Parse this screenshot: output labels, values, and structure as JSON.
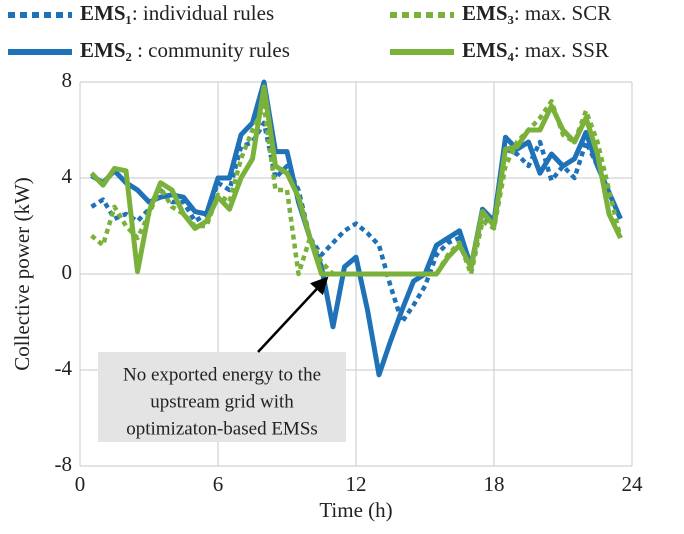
{
  "chart_data": {
    "type": "line",
    "xlabel": "Time (h)",
    "ylabel": "Collective power (kW)",
    "xlim": [
      0,
      24
    ],
    "xticks": [
      0,
      6,
      12,
      18,
      24
    ],
    "ylim": [
      -8,
      8
    ],
    "yticks": [
      -8,
      -4,
      0,
      4,
      8
    ],
    "grid": true,
    "legend": "top",
    "annotation": [
      "No exported energy to the",
      "upstream grid with",
      "optimizaton-based EMSs"
    ],
    "x": [
      0.5,
      1,
      1.5,
      2,
      2.5,
      3,
      3.5,
      4,
      4.5,
      5,
      5.5,
      6,
      6.5,
      7,
      7.5,
      8,
      8.5,
      9,
      9.5,
      10,
      10.5,
      11,
      11.5,
      12,
      12.5,
      13,
      13.5,
      14,
      14.5,
      15,
      15.5,
      16,
      16.5,
      17,
      17.5,
      18,
      18.5,
      19,
      19.5,
      20,
      20.5,
      21,
      21.5,
      22,
      22.5,
      23,
      23.5
    ],
    "series": [
      {
        "name": "EMS₁: individual rules",
        "color": "#1f72b8",
        "dash": true,
        "values": [
          2.8,
          3.1,
          2.3,
          2.5,
          2.2,
          2.7,
          3.5,
          3.0,
          3.0,
          2.2,
          2.5,
          3.8,
          3.5,
          5.3,
          5.5,
          6.3,
          4.0,
          4.5,
          3.5,
          1.5,
          0.8,
          1.3,
          1.8,
          2.1,
          1.7,
          1.2,
          -0.5,
          -2.0,
          -1.3,
          -0.5,
          0.8,
          1.3,
          1.5,
          0.2,
          2.5,
          2.0,
          5.2,
          5.0,
          4.5,
          5.5,
          3.9,
          4.5,
          4.0,
          5.5,
          4.5,
          3.4,
          2.3
        ]
      },
      {
        "name": "EMS₂ : community rules",
        "color": "#1f72b8",
        "dash": false,
        "values": [
          4.1,
          3.8,
          4.3,
          3.8,
          3.5,
          3.0,
          3.2,
          3.3,
          3.2,
          2.6,
          2.5,
          4.0,
          4.0,
          5.8,
          6.3,
          8.0,
          5.1,
          5.1,
          3.0,
          1.5,
          0.3,
          -2.2,
          0.3,
          0.7,
          -1.5,
          -4.2,
          -2.8,
          -1.5,
          -0.3,
          0,
          1.2,
          1.5,
          1.8,
          0.3,
          2.7,
          2.2,
          5.7,
          5.2,
          5.5,
          4.2,
          5.0,
          4.5,
          4.8,
          5.9,
          4.5,
          3.4,
          2.3
        ]
      },
      {
        "name": "EMS₃: max. SCR",
        "color": "#7ab13b",
        "dash": true,
        "values": [
          1.6,
          1.2,
          2.8,
          2.0,
          1.5,
          2.5,
          3.6,
          2.8,
          2.5,
          2.0,
          2.0,
          3.3,
          3.0,
          4.8,
          6.0,
          7.0,
          3.5,
          3.5,
          0,
          1.5,
          0.5,
          0,
          0,
          0,
          0,
          0,
          0,
          0,
          0,
          0,
          0,
          0.8,
          1.3,
          0,
          2.2,
          1.9,
          4.5,
          5.5,
          6.0,
          6.5,
          7.2,
          5.8,
          5.5,
          6.8,
          5.5,
          3.5,
          1.5
        ]
      },
      {
        "name": "EMS₄: max. SSR",
        "color": "#7ab13b",
        "dash": false,
        "values": [
          4.2,
          3.7,
          4.4,
          4.3,
          0.1,
          2.6,
          3.8,
          3.5,
          2.5,
          1.9,
          2.2,
          3.2,
          2.7,
          4.0,
          4.8,
          7.8,
          4.5,
          4.2,
          3.2,
          1.5,
          0,
          0,
          0,
          0,
          0,
          0,
          0,
          0,
          0,
          0,
          0,
          0.7,
          1.2,
          0.3,
          2.6,
          2.0,
          5.2,
          5.3,
          6.0,
          6.0,
          7.0,
          6.0,
          5.5,
          6.5,
          5.0,
          2.5,
          1.5
        ]
      }
    ]
  }
}
